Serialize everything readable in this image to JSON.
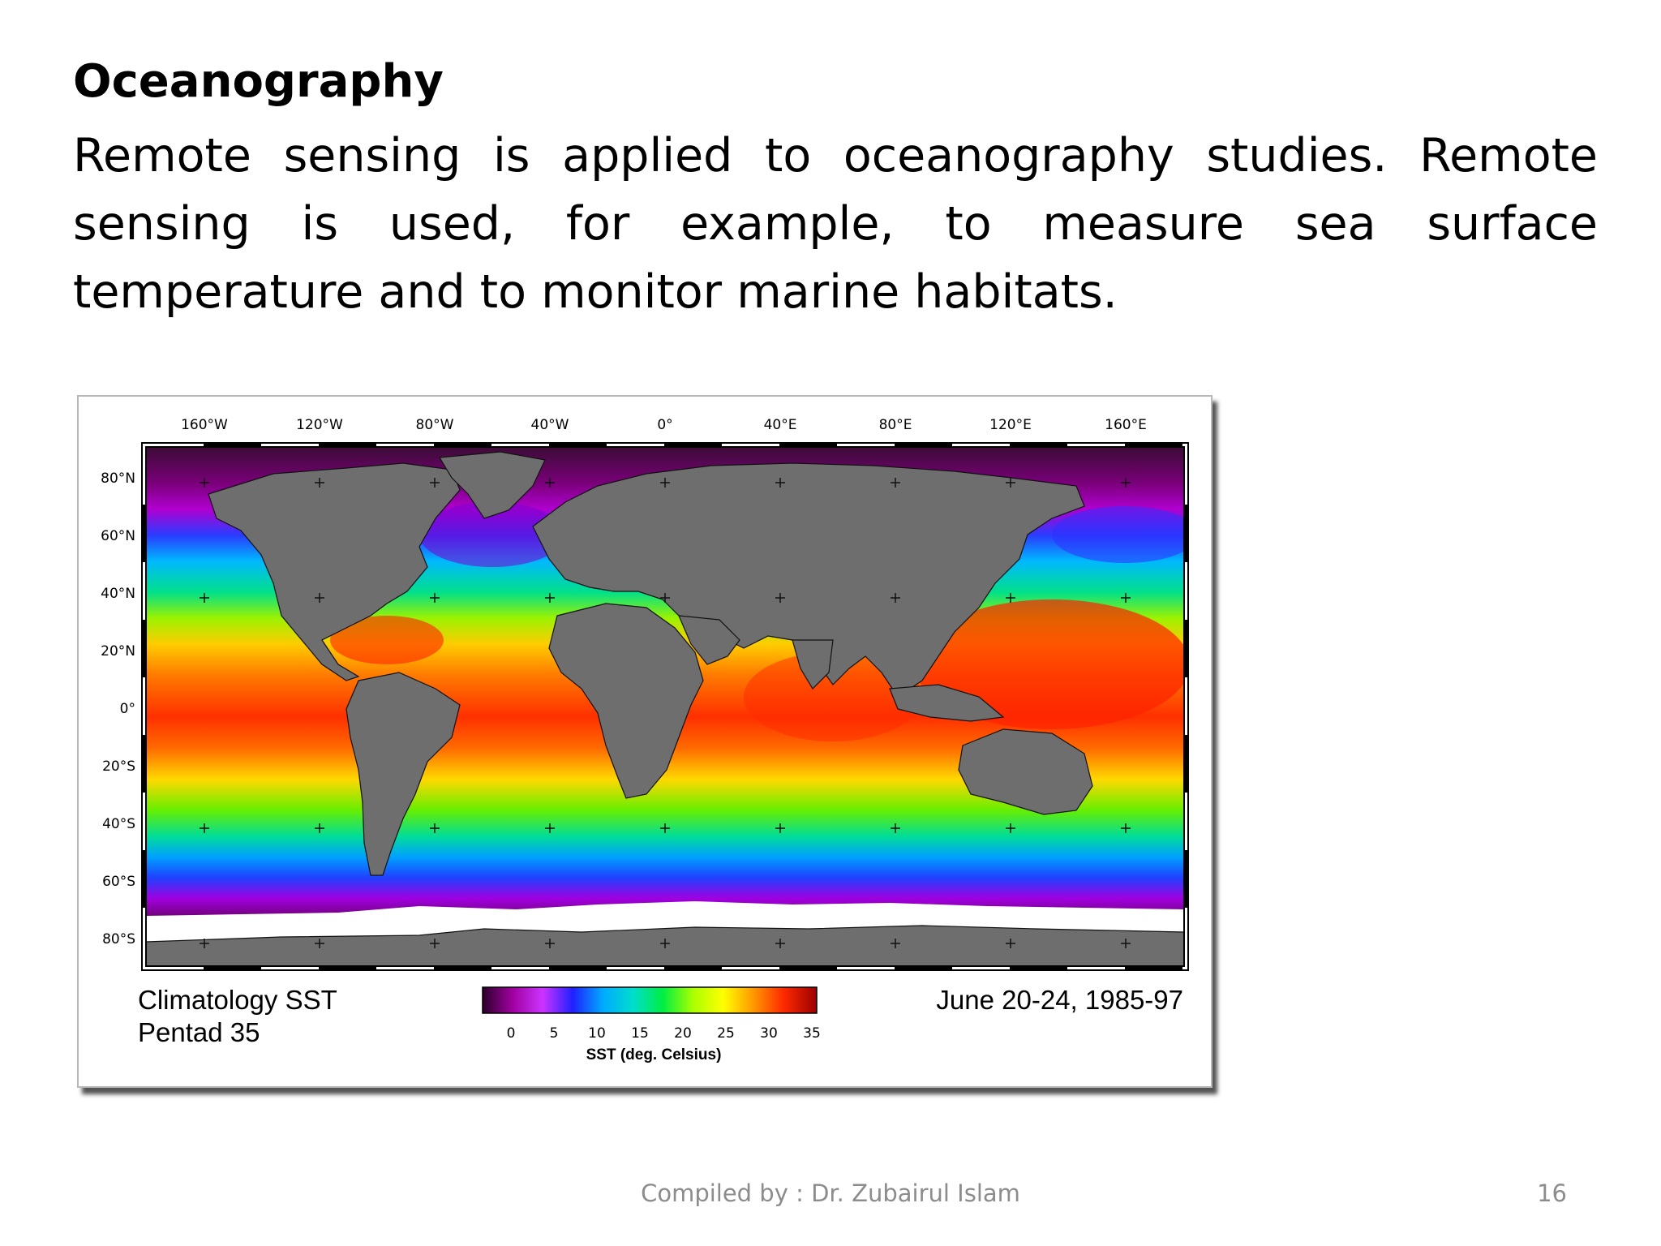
{
  "slide": {
    "title": "Oceanography",
    "body": "Remote sensing is applied to oceanography studies. Remote sensing is used, for example, to measure sea surface temperature and to monitor marine habitats."
  },
  "figure": {
    "top_labels": [
      "160°W",
      "120°W",
      "80°W",
      "40°W",
      "0°",
      "40°E",
      "80°E",
      "120°E",
      "160°E"
    ],
    "side_labels": [
      "80°N",
      "60°N",
      "40°N",
      "20°N",
      "0°",
      "20°S",
      "40°S",
      "60°S",
      "80°S"
    ],
    "caption_line1": "Climatology SST",
    "caption_line2": "Pentad 35",
    "date_text": "June 20-24, 1985-97",
    "colorbar_ticks": [
      "0",
      "5",
      "10",
      "15",
      "20",
      "25",
      "30",
      "35"
    ],
    "colorbar_label": "SST (deg. Celsius)",
    "colors": {
      "land": "#6e6e6e",
      "ice": "#ffffff",
      "polar": "#4a0f3f",
      "scale": [
        "#2a0028",
        "#a000a0",
        "#cc33ff",
        "#2020ff",
        "#00aaff",
        "#00ddcc",
        "#00ee44",
        "#aaff00",
        "#ffff00",
        "#ff9900",
        "#ff2a00",
        "#9b0000"
      ]
    }
  },
  "footer": {
    "credit": "Compiled by : Dr. Zubairul Islam",
    "page_number": "16"
  }
}
